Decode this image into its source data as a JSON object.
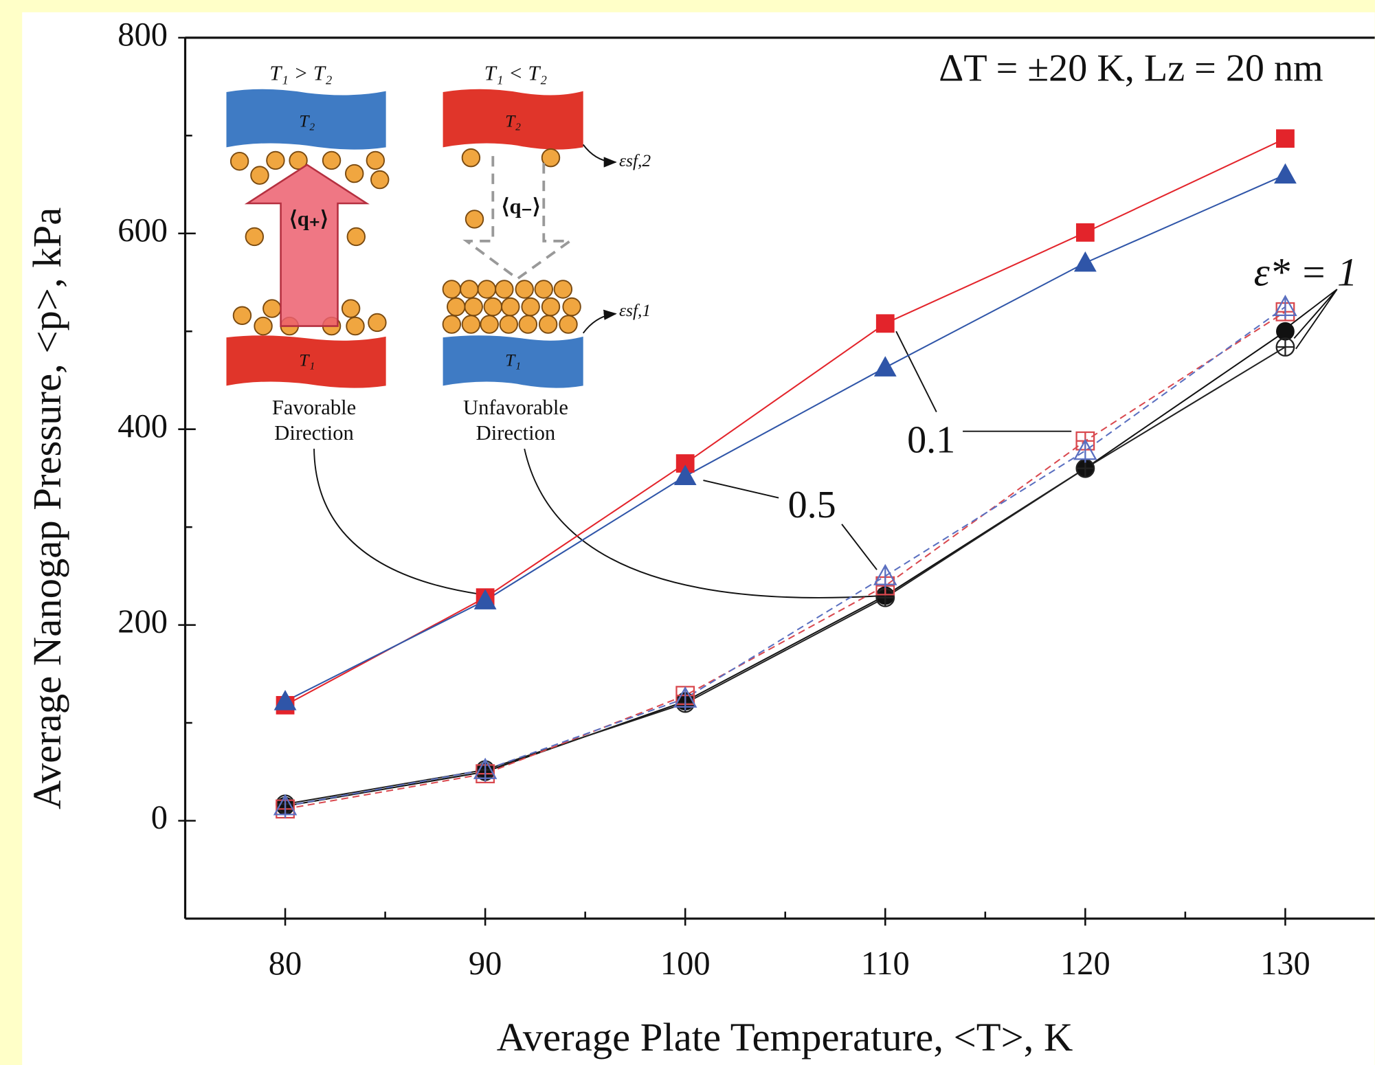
{
  "chart_data": {
    "type": "line",
    "x_label": "Average Plate Temperature, <T>, K",
    "y_label": "Average Nanogap Pressure, <p>, kPa",
    "x": [
      80,
      90,
      100,
      110,
      120,
      130
    ],
    "xlim": [
      75,
      135
    ],
    "ylim": [
      -100,
      800
    ],
    "xticks": [
      80,
      90,
      100,
      110,
      120,
      130
    ],
    "yticks": [
      0,
      200,
      400,
      600,
      800
    ],
    "xminorticks": [
      85,
      95,
      105,
      115,
      125
    ],
    "yminorticks": [
      -100,
      100,
      300,
      500,
      700
    ],
    "series": [
      {
        "color": "#e3242b",
        "marker": "square",
        "filled": true,
        "dashed": false,
        "values": [
          118,
          228,
          365,
          508,
          601,
          697
        ]
      },
      {
        "color": "#2f55a8",
        "marker": "triangle",
        "filled": true,
        "dashed": false,
        "values": [
          122,
          225,
          352,
          463,
          570,
          660
        ]
      },
      {
        "color": "#111111",
        "marker": "circle",
        "filled": true,
        "dashed": false,
        "values": [
          15,
          50,
          122,
          230,
          360,
          500
        ]
      },
      {
        "color": "#222222",
        "marker": "circle",
        "filled": false,
        "dashed": false,
        "values": [
          17,
          52,
          120,
          228,
          360,
          484
        ]
      },
      {
        "color": "#d9484e",
        "marker": "square",
        "filled": false,
        "dashed": true,
        "values": [
          12,
          48,
          128,
          240,
          388,
          520
        ]
      },
      {
        "color": "#5a6fc0",
        "marker": "triangle",
        "filled": false,
        "dashed": true,
        "values": [
          15,
          52,
          125,
          250,
          378,
          525
        ]
      }
    ],
    "annotations": {
      "condition": "ΔT = ±20 K, Lz =  20 nm",
      "eps_1": "ε* = 1",
      "eps_01": "0.1",
      "eps_05": "0.5"
    },
    "inset": {
      "left_title": "T₁ > T₂",
      "right_title": "T₁ < T₂",
      "plate_top": "T₂",
      "plate_bottom": "T₁",
      "flux_plus": "⟨q₊⟩",
      "flux_minus": "⟨q₋⟩",
      "eps_sf2": "εsf,2",
      "eps_sf1": "εsf,1",
      "favorable": [
        "Favorable",
        "Direction"
      ],
      "unfavorable": [
        "Unfavorable",
        "Direction"
      ]
    }
  }
}
